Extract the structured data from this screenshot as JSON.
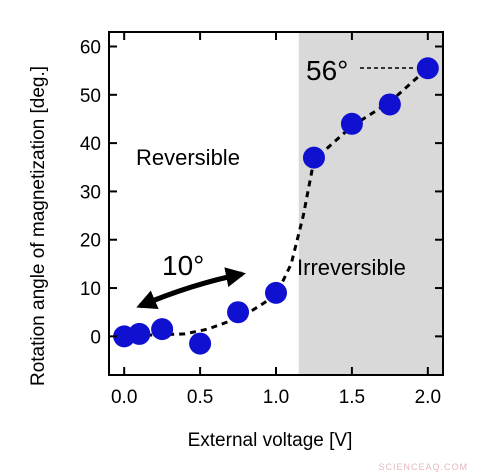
{
  "chart_data": {
    "type": "scatter",
    "title": "",
    "xlabel": "External voltage [V]",
    "ylabel": "Rotation angle of magnetization [deg.]",
    "xlim": [
      -0.1,
      2.1
    ],
    "ylim": [
      -8,
      63
    ],
    "x_ticks": [
      "0.0",
      "0.5",
      "1.0",
      "1.5",
      "2.0"
    ],
    "y_ticks": [
      "0",
      "10",
      "20",
      "30",
      "40",
      "50",
      "60"
    ],
    "grid": false,
    "points": [
      {
        "x": 0.0,
        "y": 0
      },
      {
        "x": 0.1,
        "y": 0.5
      },
      {
        "x": 0.25,
        "y": 1.5
      },
      {
        "x": 0.5,
        "y": -1.5
      },
      {
        "x": 0.75,
        "y": 5
      },
      {
        "x": 1.0,
        "y": 9
      },
      {
        "x": 1.25,
        "y": 37
      },
      {
        "x": 1.5,
        "y": 44
      },
      {
        "x": 1.75,
        "y": 48
      },
      {
        "x": 2.0,
        "y": 55.5
      }
    ],
    "fit_curve": [
      [
        0.0,
        0
      ],
      [
        0.2,
        0.3
      ],
      [
        0.4,
        0.5
      ],
      [
        0.55,
        1.5
      ],
      [
        0.7,
        3.2
      ],
      [
        0.85,
        5.5
      ],
      [
        1.0,
        8.5
      ],
      [
        1.1,
        15
      ],
      [
        1.18,
        25
      ],
      [
        1.25,
        36.5
      ],
      [
        1.5,
        43.5
      ],
      [
        1.75,
        48.5
      ],
      [
        2.0,
        55.5
      ]
    ],
    "irreversible_region": {
      "x_start": 1.15,
      "x_end": 2.1
    },
    "annotations": {
      "reversible": "Reversible",
      "irreversible": "Irreversible",
      "swing_angle": "10°",
      "max_angle": "56°"
    },
    "colors": {
      "marker": "#1010d0",
      "shade": "#d9d9d9",
      "line": "#000000"
    }
  },
  "watermark": "SCIENCEAQ.COM"
}
